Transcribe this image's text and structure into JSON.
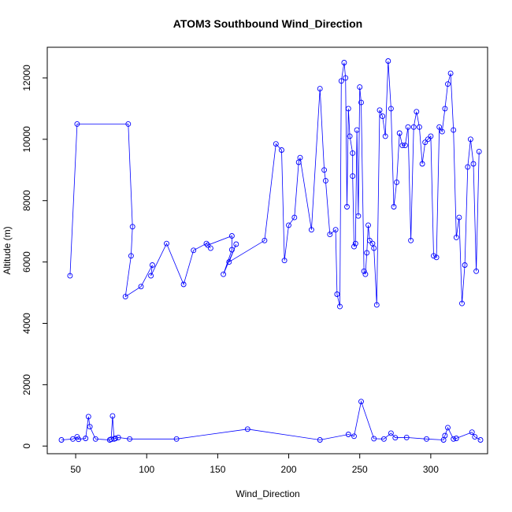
{
  "chart_data": {
    "type": "scatter",
    "title": "ATOM3 Southbound Wind_Direction",
    "xlabel": "Wind_Direction",
    "ylabel": "Altitude (m)",
    "xlim": [
      30,
      340
    ],
    "ylim": [
      -250,
      13000
    ],
    "xticks": [
      50,
      100,
      150,
      200,
      250,
      300
    ],
    "yticks": [
      0,
      2000,
      4000,
      6000,
      8000,
      10000,
      12000
    ],
    "grid": false,
    "legend": "none",
    "color": "#0000ff",
    "series": [
      {
        "x": [
          46,
          51,
          87,
          90,
          89,
          85,
          96,
          104,
          103,
          114,
          126,
          133,
          142,
          145,
          143,
          160,
          160,
          154,
          163,
          158,
          183,
          191,
          195,
          197,
          200,
          204,
          207,
          208,
          216,
          222,
          225,
          226,
          229,
          233,
          234,
          236,
          237,
          239,
          240,
          241,
          242,
          243,
          245,
          245,
          246,
          247,
          248,
          249,
          250,
          251,
          253,
          254,
          255,
          256,
          257,
          259,
          260,
          262,
          264,
          266,
          268,
          270,
          272,
          274,
          276,
          278,
          280,
          282,
          284,
          286,
          288,
          290,
          292,
          294,
          296,
          298,
          300,
          302,
          304,
          306,
          308,
          310,
          312,
          314,
          316,
          318,
          320,
          322,
          324,
          326,
          328,
          330,
          332,
          334
        ],
        "y": [
          5550,
          10500,
          10500,
          7150,
          6200,
          4870,
          5200,
          5900,
          5550,
          6600,
          5270,
          6380,
          6600,
          6450,
          6550,
          6850,
          6400,
          5600,
          6580,
          6000,
          6700,
          9850,
          9650,
          6050,
          7200,
          7450,
          9250,
          9400,
          7050,
          11650,
          9000,
          8650,
          6900,
          7050,
          4950,
          4550,
          11900,
          12500,
          12000,
          7800,
          11000,
          10100,
          9550,
          8800,
          6500,
          6600,
          10300,
          7500,
          11700,
          11200,
          5700,
          5600,
          6300,
          7200,
          6700,
          6600,
          6450,
          4600,
          10950,
          10750,
          10100,
          12550,
          11000,
          7800,
          8600,
          10200,
          9800,
          9800,
          10400,
          6700,
          10400,
          10900,
          10400,
          9200,
          9900,
          10000,
          10100,
          6200,
          6150,
          10400,
          10250,
          11000,
          11800,
          12150,
          10300,
          6800,
          7450,
          4650,
          5900,
          9100,
          10000,
          9200,
          5700,
          9600
        ]
      },
      {
        "x": [
          40,
          48,
          51,
          52,
          57,
          59,
          60,
          64,
          74,
          75,
          76,
          77,
          78,
          80,
          88,
          121,
          171,
          222,
          242,
          246,
          251,
          260,
          267,
          272,
          275,
          283,
          297,
          309,
          310,
          312,
          316,
          318,
          329,
          331,
          335
        ],
        "y": [
          200,
          230,
          300,
          220,
          250,
          960,
          630,
          230,
          200,
          220,
          980,
          230,
          250,
          280,
          230,
          230,
          550,
          200,
          380,
          320,
          1450,
          240,
          230,
          420,
          270,
          280,
          230,
          200,
          340,
          600,
          230,
          250,
          450,
          300,
          200
        ]
      }
    ]
  }
}
